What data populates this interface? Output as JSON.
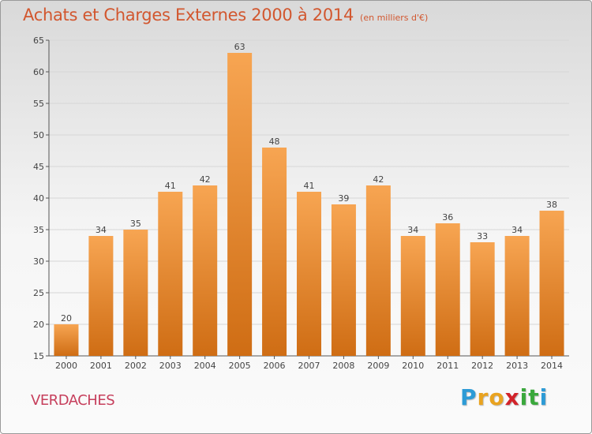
{
  "header": {
    "title": "Achats et Charges Externes 2000 à 2014",
    "unit": "(en milliers d'€)"
  },
  "footer": {
    "place": "VERDACHES",
    "brand_letters": [
      "P",
      "r",
      "o",
      "x",
      "i",
      "t",
      "i"
    ],
    "brand_colors": [
      "#2d9bd6",
      "#e9a320",
      "#e9a320",
      "#d2232a",
      "#3aa83c",
      "#3aa83c",
      "#2d9bd6"
    ]
  },
  "chart_data": {
    "type": "bar",
    "categories": [
      "2000",
      "2001",
      "2002",
      "2003",
      "2004",
      "2005",
      "2006",
      "2007",
      "2008",
      "2009",
      "2010",
      "2011",
      "2012",
      "2013",
      "2014"
    ],
    "values": [
      20,
      34,
      35,
      41,
      42,
      63,
      48,
      41,
      39,
      42,
      34,
      36,
      33,
      34,
      38
    ],
    "ylim": [
      15,
      65
    ],
    "yticks": [
      15,
      20,
      25,
      30,
      35,
      40,
      45,
      50,
      55,
      60,
      65
    ],
    "grid": true,
    "bar_color_top": "#f7a552",
    "bar_color_bottom": "#cf6d14"
  }
}
